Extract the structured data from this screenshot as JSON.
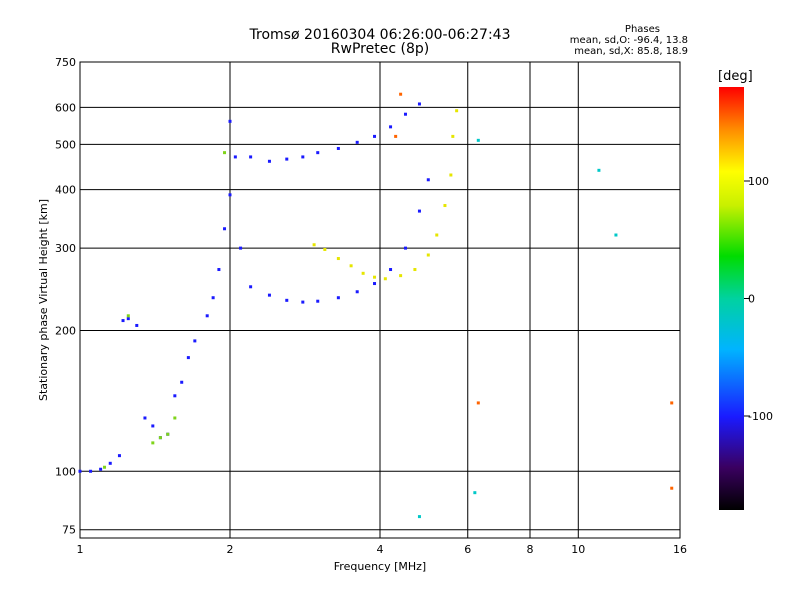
{
  "header": {
    "title_line1": "Tromsø 20160304 06:26:00-06:27:43",
    "title_line2": "RwPretec (8p)"
  },
  "stats": {
    "heading": "Phases",
    "o_mode": "mean, sd,O: -96.4, 13.8",
    "x_mode": "mean, sd,X:  85.8, 18.9"
  },
  "chart_data": {
    "type": "scatter",
    "xlabel": "Frequency [MHz]",
    "ylabel": "Stationary phase Virtual Height [km]",
    "xscale": "log",
    "yscale": "log",
    "xlim": [
      1,
      16
    ],
    "ylim": [
      72,
      750
    ],
    "x_ticks": [
      1,
      2,
      4,
      6,
      8,
      10,
      16
    ],
    "x_tick_labels": [
      "1",
      "2",
      "4",
      "6",
      "8",
      "10",
      "16"
    ],
    "y_ticks": [
      75,
      100,
      200,
      300,
      400,
      500,
      600,
      750
    ],
    "y_tick_labels": [
      "75",
      "100",
      "200",
      "300",
      "400",
      "500",
      "600",
      "750"
    ],
    "grid": true,
    "colorbar": {
      "label": "[deg]",
      "range": [
        -180,
        180
      ],
      "ticks": [
        100,
        0,
        -100
      ],
      "tick_labels": [
        "100",
        "0",
        "-100"
      ]
    },
    "series": [
      {
        "color_phase": -100,
        "color": "#1a1aff",
        "points": [
          [
            1.0,
            100
          ],
          [
            1.05,
            100
          ],
          [
            1.1,
            101
          ],
          [
            1.15,
            104
          ],
          [
            1.2,
            108
          ],
          [
            1.22,
            210
          ],
          [
            1.25,
            212
          ],
          [
            1.3,
            205
          ],
          [
            1.35,
            130
          ],
          [
            1.4,
            125
          ],
          [
            1.45,
            118
          ],
          [
            1.5,
            120
          ],
          [
            1.55,
            145
          ],
          [
            1.6,
            155
          ],
          [
            1.65,
            175
          ],
          [
            1.7,
            190
          ],
          [
            1.8,
            215
          ],
          [
            1.85,
            235
          ],
          [
            1.9,
            270
          ],
          [
            1.95,
            330
          ],
          [
            2.0,
            390
          ],
          [
            2.0,
            560
          ],
          [
            2.05,
            470
          ],
          [
            2.1,
            300
          ],
          [
            2.2,
            470
          ],
          [
            2.4,
            460
          ],
          [
            2.6,
            465
          ],
          [
            2.8,
            470
          ],
          [
            3.0,
            480
          ],
          [
            3.3,
            490
          ],
          [
            3.6,
            505
          ],
          [
            3.9,
            520
          ],
          [
            4.2,
            545
          ],
          [
            4.5,
            580
          ],
          [
            4.8,
            610
          ],
          [
            2.2,
            248
          ],
          [
            2.4,
            238
          ],
          [
            2.6,
            232
          ],
          [
            2.8,
            230
          ],
          [
            3.0,
            231
          ],
          [
            3.3,
            235
          ],
          [
            3.6,
            242
          ],
          [
            3.9,
            252
          ],
          [
            4.2,
            270
          ],
          [
            4.5,
            300
          ],
          [
            4.8,
            360
          ],
          [
            5.0,
            420
          ]
        ]
      },
      {
        "color_phase": 90,
        "color": "#e6e600",
        "points": [
          [
            2.95,
            305
          ],
          [
            3.1,
            298
          ],
          [
            3.3,
            285
          ],
          [
            3.5,
            275
          ],
          [
            3.7,
            265
          ],
          [
            3.9,
            260
          ],
          [
            4.1,
            258
          ],
          [
            4.4,
            262
          ],
          [
            4.7,
            270
          ],
          [
            5.0,
            290
          ],
          [
            5.2,
            320
          ],
          [
            5.4,
            370
          ],
          [
            5.55,
            430
          ],
          [
            5.6,
            520
          ],
          [
            5.7,
            590
          ]
        ]
      },
      {
        "color_phase": 45,
        "color": "#7fd419",
        "points": [
          [
            1.12,
            102
          ],
          [
            1.25,
            215
          ],
          [
            1.4,
            115
          ],
          [
            1.45,
            118
          ],
          [
            1.5,
            120
          ],
          [
            1.55,
            130
          ],
          [
            1.95,
            480
          ]
        ]
      },
      {
        "color_phase": -20,
        "color": "#00c8c8",
        "points": [
          [
            4.8,
            80
          ],
          [
            6.2,
            90
          ],
          [
            6.3,
            510
          ],
          [
            11.0,
            440
          ],
          [
            11.9,
            320
          ]
        ]
      },
      {
        "color_phase": 150,
        "color": "#ff6400",
        "points": [
          [
            4.4,
            640
          ],
          [
            4.3,
            520
          ],
          [
            6.3,
            140
          ],
          [
            15.4,
            140
          ],
          [
            15.4,
            92
          ]
        ]
      }
    ]
  }
}
